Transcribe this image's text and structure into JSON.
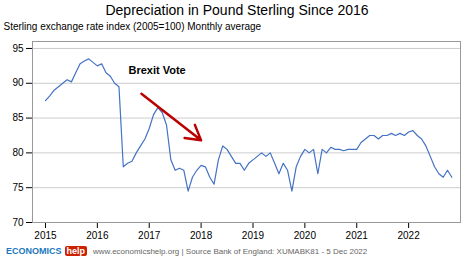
{
  "chart_data": {
    "type": "line",
    "title": "Depreciation in Pound Sterling Since 2016",
    "ylabel": "Sterling exchange rate index (2005=100) Monthly average",
    "x": [
      2015.0,
      2015.083,
      2015.167,
      2015.25,
      2015.333,
      2015.417,
      2015.5,
      2015.583,
      2015.667,
      2015.75,
      2015.833,
      2015.917,
      2016.0,
      2016.083,
      2016.167,
      2016.25,
      2016.333,
      2016.417,
      2016.5,
      2016.583,
      2016.667,
      2016.75,
      2016.833,
      2016.917,
      2017.0,
      2017.083,
      2017.167,
      2017.25,
      2017.333,
      2017.417,
      2017.5,
      2017.583,
      2017.667,
      2017.75,
      2017.833,
      2017.917,
      2018.0,
      2018.083,
      2018.167,
      2018.25,
      2018.333,
      2018.417,
      2018.5,
      2018.583,
      2018.667,
      2018.75,
      2018.833,
      2018.917,
      2019.0,
      2019.083,
      2019.167,
      2019.25,
      2019.333,
      2019.417,
      2019.5,
      2019.583,
      2019.667,
      2019.75,
      2019.833,
      2019.917,
      2020.0,
      2020.083,
      2020.167,
      2020.25,
      2020.333,
      2020.417,
      2020.5,
      2020.583,
      2020.667,
      2020.75,
      2020.833,
      2020.917,
      2021.0,
      2021.083,
      2021.167,
      2021.25,
      2021.333,
      2021.417,
      2021.5,
      2021.583,
      2021.667,
      2021.75,
      2021.833,
      2021.917,
      2022.0,
      2022.083,
      2022.167,
      2022.25,
      2022.333,
      2022.417,
      2022.5,
      2022.583,
      2022.667,
      2022.75,
      2022.833
    ],
    "values": [
      87.5,
      88.2,
      89.0,
      89.5,
      90.0,
      90.5,
      90.2,
      91.5,
      92.8,
      93.2,
      93.5,
      93.0,
      92.5,
      92.8,
      91.5,
      91.0,
      90.0,
      89.5,
      78.0,
      78.5,
      78.8,
      80.0,
      81.0,
      82.0,
      83.5,
      85.5,
      86.5,
      85.8,
      84.0,
      79.0,
      77.5,
      77.8,
      77.5,
      74.5,
      76.5,
      77.5,
      78.2,
      78.0,
      76.5,
      75.5,
      79.0,
      81.0,
      80.5,
      79.5,
      78.5,
      78.5,
      77.5,
      78.5,
      79.0,
      79.5,
      80.0,
      79.5,
      80.0,
      78.5,
      77.0,
      78.5,
      77.5,
      74.5,
      78.0,
      79.5,
      80.5,
      80.0,
      80.5,
      77.0,
      80.5,
      80.0,
      80.8,
      80.5,
      80.5,
      80.3,
      80.5,
      80.5,
      80.5,
      81.5,
      82.0,
      82.5,
      82.5,
      82.0,
      82.5,
      82.5,
      82.8,
      82.5,
      82.8,
      82.5,
      83.0,
      83.2,
      82.5,
      82.0,
      81.0,
      79.5,
      78.0,
      77.0,
      76.5,
      77.5,
      76.5
    ],
    "color": "#4472C4",
    "xlim": [
      2014.75,
      2023.0
    ],
    "xticks": [
      2015,
      2016,
      2017,
      2018,
      2019,
      2020,
      2021,
      2022
    ],
    "ylim": [
      70,
      96
    ],
    "yticks": [
      70,
      75,
      80,
      85,
      90,
      95
    ],
    "grid": true,
    "annotations": [
      {
        "text": "Brexit Vote",
        "x": 2016.6,
        "y": 91.8,
        "arrow_from": [
          2016.85,
          88.5
        ],
        "arrow_to": [
          2018.0,
          81.8
        ],
        "arrow_color": "#bb0000"
      }
    ],
    "footer": [
      "ECONOMICS",
      "help",
      "www.economicshelp.org | Source Bank of England: XUMABK81 - 5 Dec 2022"
    ]
  }
}
